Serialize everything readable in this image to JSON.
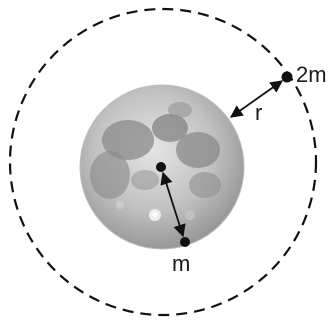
{
  "diagram": {
    "labels": {
      "outer_mass": "2m",
      "radius": "r",
      "surface_mass": "m"
    },
    "colors": {
      "line": "#111111",
      "moon_light": "#d6d6d6",
      "moon_dark": "#7a7a7a"
    },
    "icons": [
      "moon-image",
      "point-mass-2m",
      "point-mass-m",
      "center-point"
    ]
  }
}
